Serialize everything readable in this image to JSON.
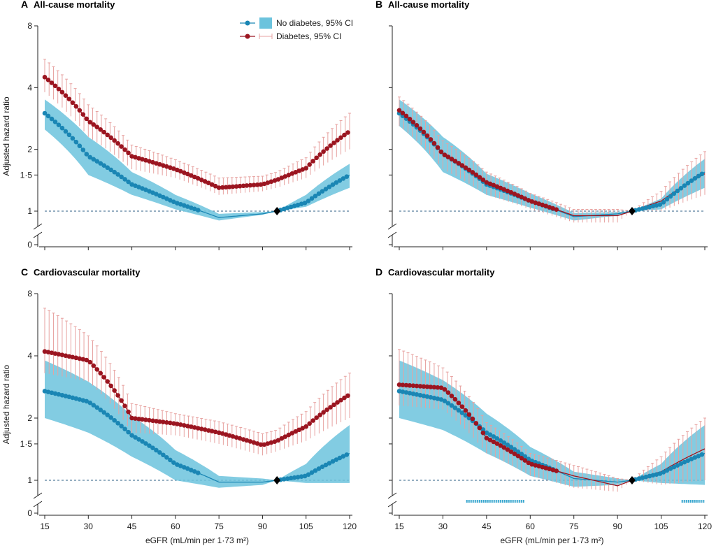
{
  "colors": {
    "no_diabetes": "#1a86b4",
    "no_diabetes_ci": "#6cc3dd",
    "diabetes": "#9b1520",
    "diabetes_ci": "#e7a2a0",
    "reference_marker": "#000000",
    "axis": "#222222",
    "reference_line": "#2c5f86",
    "significance_bar": "#3aa7cf"
  },
  "legend": {
    "no_diabetes": "No diabetes, 95% CI",
    "diabetes": "Diabetes, 95% CI"
  },
  "axes": {
    "ylabel": "Adjusted hazard ratio",
    "xlabel": "eGFR (mL/min per 1·73 m²)",
    "x_ticks": [
      15,
      30,
      45,
      60,
      75,
      90,
      105,
      120
    ],
    "y_ticks": [
      {
        "value": 1,
        "label": "1"
      },
      {
        "value": 1.5,
        "label": "1·5"
      },
      {
        "value": 2,
        "label": "2"
      },
      {
        "value": 4,
        "label": "4"
      },
      {
        "value": 8,
        "label": "8"
      }
    ],
    "y_break_label": "0",
    "y_scale": "log",
    "xlim": [
      15,
      120
    ],
    "ylim": [
      1,
      8
    ],
    "reference_eGFR": 95
  },
  "chart_data": [
    {
      "panel": "A",
      "type": "line",
      "title": "All-cause mortality",
      "x_ref": 95,
      "series": [
        {
          "name": "No diabetes, 95% CI",
          "key": "nd",
          "x": [
            15,
            30,
            45,
            60,
            75,
            90,
            95,
            105,
            120
          ],
          "y": [
            3.0,
            1.85,
            1.35,
            1.1,
            0.93,
            0.97,
            1.0,
            1.1,
            1.5
          ],
          "lo": [
            2.5,
            1.5,
            1.2,
            1.02,
            0.9,
            0.96,
            1.0,
            1.05,
            1.3
          ],
          "hi": [
            3.5,
            2.3,
            1.55,
            1.2,
            0.97,
            0.99,
            1.0,
            1.2,
            1.7
          ]
        },
        {
          "name": "Diabetes, 95% CI",
          "key": "d",
          "x": [
            15,
            30,
            45,
            60,
            75,
            90,
            95,
            105,
            120
          ],
          "y": [
            4.5,
            2.75,
            1.85,
            1.6,
            1.3,
            1.35,
            1.42,
            1.62,
            2.45
          ],
          "lo": [
            3.8,
            2.3,
            1.6,
            1.45,
            1.2,
            1.25,
            1.3,
            1.45,
            2.0
          ],
          "hi": [
            5.5,
            3.3,
            2.1,
            1.78,
            1.45,
            1.48,
            1.55,
            1.82,
            3.0
          ]
        }
      ]
    },
    {
      "panel": "B",
      "type": "line",
      "title": "All-cause mortality",
      "x_ref": 95,
      "series": [
        {
          "name": "No diabetes, 95% CI",
          "key": "nd",
          "x": [
            15,
            30,
            45,
            60,
            75,
            90,
            95,
            105,
            120
          ],
          "y": [
            3.0,
            1.9,
            1.35,
            1.12,
            0.94,
            0.97,
            1.0,
            1.08,
            1.55
          ],
          "lo": [
            2.6,
            1.55,
            1.2,
            1.04,
            0.9,
            0.95,
            1.0,
            1.02,
            1.3
          ],
          "hi": [
            3.5,
            2.3,
            1.52,
            1.22,
            0.98,
            0.99,
            1.0,
            1.15,
            1.8
          ]
        },
        {
          "name": "Diabetes, 95% CI",
          "key": "d",
          "x": [
            15,
            30,
            45,
            60,
            75,
            90,
            95,
            105,
            120
          ],
          "y": [
            3.1,
            1.9,
            1.38,
            1.12,
            0.95,
            0.95,
            1.0,
            1.12,
            1.52
          ],
          "lo": [
            2.6,
            1.6,
            1.2,
            1.02,
            0.88,
            0.88,
            1.0,
            1.0,
            1.2
          ],
          "hi": [
            3.6,
            2.2,
            1.55,
            1.22,
            1.02,
            1.02,
            1.0,
            1.25,
            1.95
          ]
        }
      ]
    },
    {
      "panel": "C",
      "type": "line",
      "title": "Cardiovascular mortality",
      "x_ref": 95,
      "series": [
        {
          "name": "No diabetes, 95% CI",
          "key": "nd",
          "x": [
            15,
            30,
            45,
            60,
            75,
            90,
            95,
            105,
            120
          ],
          "y": [
            2.7,
            2.4,
            1.65,
            1.2,
            0.98,
            0.98,
            1.0,
            1.05,
            1.35
          ],
          "lo": [
            2.0,
            1.7,
            1.3,
            1.0,
            0.92,
            0.95,
            1.0,
            0.97,
            0.97
          ],
          "hi": [
            3.8,
            3.0,
            2.05,
            1.4,
            1.05,
            1.02,
            1.0,
            1.2,
            1.85
          ]
        },
        {
          "name": "Diabetes, 95% CI",
          "key": "d",
          "x": [
            15,
            30,
            45,
            60,
            75,
            90,
            95,
            105,
            120
          ],
          "y": [
            4.2,
            3.8,
            2.0,
            1.88,
            1.7,
            1.48,
            1.55,
            1.82,
            2.6
          ],
          "lo": [
            3.3,
            3.0,
            1.7,
            1.65,
            1.5,
            1.32,
            1.38,
            1.55,
            2.0
          ],
          "hi": [
            6.8,
            5.0,
            2.35,
            2.1,
            1.92,
            1.68,
            1.75,
            2.15,
            3.3
          ]
        }
      ]
    },
    {
      "panel": "D",
      "type": "line",
      "title": "Cardiovascular mortality",
      "x_ref": 95,
      "series": [
        {
          "name": "No diabetes, 95% CI",
          "key": "nd",
          "x": [
            15,
            30,
            45,
            60,
            75,
            90,
            95,
            105,
            120
          ],
          "y": [
            2.7,
            2.45,
            1.7,
            1.25,
            1.02,
            0.98,
            1.0,
            1.08,
            1.35
          ],
          "lo": [
            2.0,
            1.75,
            1.35,
            1.05,
            0.93,
            0.95,
            1.0,
            0.97,
            0.95
          ],
          "hi": [
            3.8,
            3.05,
            2.1,
            1.45,
            1.1,
            1.02,
            1.0,
            1.2,
            1.85
          ]
        },
        {
          "name": "Diabetes, 95% CI",
          "key": "d",
          "x": [
            15,
            30,
            45,
            60,
            75,
            90,
            95,
            105,
            120
          ],
          "y": [
            2.9,
            2.8,
            1.6,
            1.2,
            1.05,
            0.94,
            1.0,
            1.1,
            1.42
          ],
          "lo": [
            2.3,
            2.2,
            1.35,
            1.05,
            0.92,
            0.88,
            1.0,
            0.95,
            1.0
          ],
          "hi": [
            4.3,
            3.5,
            1.9,
            1.35,
            1.18,
            1.02,
            1.0,
            1.3,
            2.0
          ]
        }
      ],
      "significance_ranges": [
        [
          38,
          58
        ],
        [
          112,
          120
        ]
      ]
    }
  ]
}
